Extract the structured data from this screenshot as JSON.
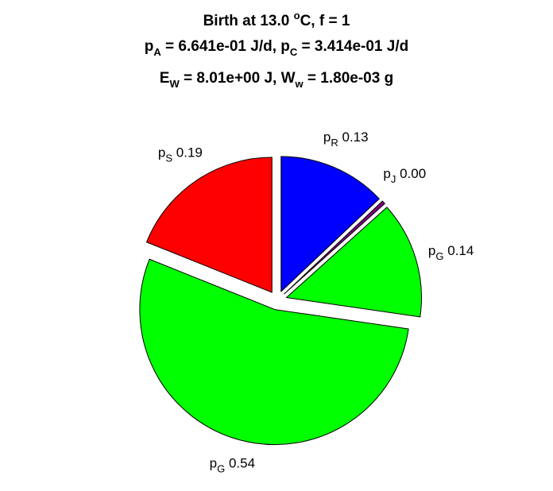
{
  "chart_data": {
    "type": "pie",
    "title": {
      "line1": {
        "pre": "Birth at 13.0 ",
        "sup": "o",
        "post": "C, f = 1"
      },
      "line2": {
        "p1": "p",
        "s1": "A",
        "t1": " = 6.641e-01 J/d, ",
        "p2": "p",
        "s2": "C",
        "t2": " = 3.414e-01 J/d"
      },
      "line3": {
        "p1": "E",
        "s1": "W",
        "t1": " = 8.01e+00 J, ",
        "p2": "W",
        "s2": "w",
        "t2": " = 1.80e-03 g"
      }
    },
    "slices": [
      {
        "base": "p",
        "sub": "R",
        "value": 0.13,
        "value_text": "0.13",
        "color": "#0000ff"
      },
      {
        "base": "p",
        "sub": "J",
        "value": 0.004,
        "value_text": "0.00",
        "color": "#800080"
      },
      {
        "base": "p",
        "sub": "G",
        "value": 0.14,
        "value_text": "0.14",
        "color": "#00ff00"
      },
      {
        "base": "p",
        "sub": "G",
        "value": 0.54,
        "value_text": "0.54",
        "color": "#00ff00"
      },
      {
        "base": "p",
        "sub": "S",
        "value": 0.19,
        "value_text": "0.19",
        "color": "#ff0000"
      }
    ],
    "start": "top",
    "direction": "clockwise",
    "exploded": true
  }
}
